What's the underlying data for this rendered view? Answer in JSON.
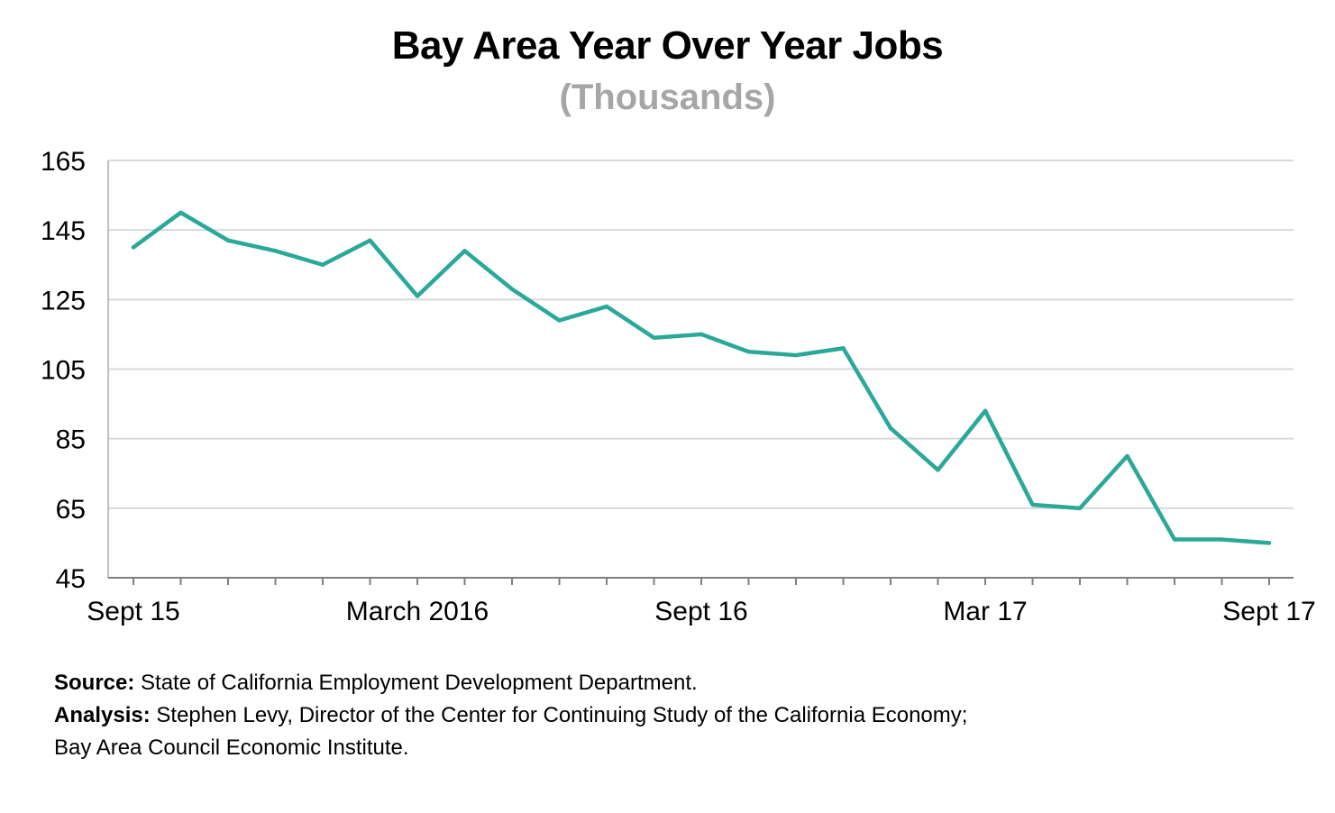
{
  "chart_data": {
    "type": "line",
    "title": "Bay Area Year Over Year Jobs",
    "subtitle": "(Thousands)",
    "ylim": [
      45,
      165
    ],
    "yticks": [
      165,
      145,
      125,
      105,
      85,
      65,
      45
    ],
    "x_tick_labels": [
      {
        "index": 0,
        "label": "Sept 15"
      },
      {
        "index": 6,
        "label": "March 2016"
      },
      {
        "index": 12,
        "label": "Sept 16"
      },
      {
        "index": 18,
        "label": "Mar 17"
      },
      {
        "index": 24,
        "label": "Sept 17"
      }
    ],
    "grid": true,
    "series": [
      {
        "color": "#2aa89a",
        "values": [
          140,
          150,
          142,
          139,
          135,
          142,
          126,
          139,
          128,
          119,
          123,
          114,
          115,
          110,
          109,
          111,
          88,
          76,
          93,
          66,
          65,
          80,
          56,
          56,
          55
        ]
      }
    ]
  },
  "source": {
    "label": "Source:",
    "text": "State of California Employment Development Department."
  },
  "analysis": {
    "label": "Analysis:",
    "line1": "Stephen Levy, Director of the Center for Continuing Study of the California Economy;",
    "line2": "Bay Area Council Economic Institute."
  }
}
